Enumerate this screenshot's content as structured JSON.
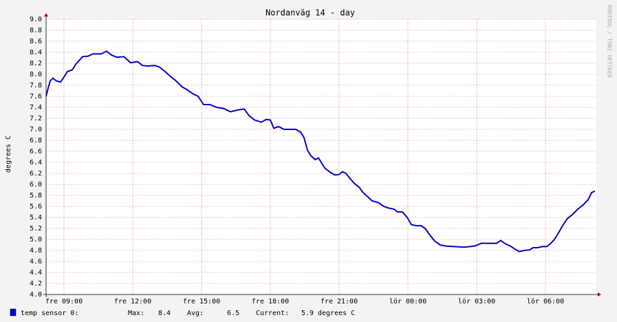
{
  "chart_data": {
    "type": "line",
    "title": "Nordanväg 14 - day",
    "y_label": "degrees C",
    "watermark": "RRDTOOL / TOBI OETIKER",
    "x": [
      8.22,
      8.31,
      8.4,
      8.52,
      8.67,
      8.85,
      9.0,
      9.15,
      9.36,
      9.51,
      9.66,
      9.81,
      10.05,
      10.26,
      10.62,
      10.86,
      11.07,
      11.31,
      11.61,
      11.91,
      12.21,
      12.42,
      12.66,
      12.96,
      13.17,
      13.41,
      13.65,
      13.89,
      14.16,
      14.37,
      14.61,
      14.85,
      15.09,
      15.36,
      15.66,
      15.96,
      16.26,
      16.56,
      16.86,
      17.07,
      17.31,
      17.61,
      17.82,
      18.0,
      18.15,
      18.36,
      18.6,
      18.81,
      19.11,
      19.32,
      19.47,
      19.62,
      19.77,
      19.95,
      20.1,
      20.22,
      20.37,
      20.61,
      20.82,
      21.0,
      21.15,
      21.3,
      21.45,
      21.66,
      21.87,
      22.05,
      22.26,
      22.44,
      22.71,
      22.95,
      23.16,
      23.4,
      23.55,
      23.76,
      23.97,
      24.15,
      24.36,
      24.57,
      24.75,
      24.96,
      25.17,
      25.41,
      25.65,
      26.01,
      26.46,
      26.91,
      27.21,
      27.57,
      27.87,
      28.05,
      28.26,
      28.47,
      28.65,
      28.86,
      29.07,
      29.31,
      29.46,
      29.67,
      29.85,
      30.06,
      30.21,
      30.39,
      30.57,
      30.75,
      30.96,
      31.17,
      31.41,
      31.65,
      31.86,
      32.01,
      32.16
    ],
    "series": [
      {
        "name": "temp sensor 0:",
        "color": "#0000cc",
        "values": [
          7.6,
          7.75,
          7.88,
          7.93,
          7.88,
          7.86,
          7.95,
          8.05,
          8.08,
          8.18,
          8.25,
          8.32,
          8.33,
          8.37,
          8.37,
          8.42,
          8.35,
          8.31,
          8.32,
          8.21,
          8.23,
          8.16,
          8.15,
          8.16,
          8.13,
          8.05,
          7.96,
          7.88,
          7.77,
          7.72,
          7.65,
          7.6,
          7.45,
          7.45,
          7.4,
          7.38,
          7.32,
          7.35,
          7.37,
          7.25,
          7.17,
          7.13,
          7.18,
          7.17,
          7.02,
          7.05,
          7.0,
          7.0,
          7.0,
          6.95,
          6.85,
          6.62,
          6.52,
          6.45,
          6.48,
          6.4,
          6.3,
          6.22,
          6.17,
          6.18,
          6.23,
          6.2,
          6.12,
          6.02,
          5.95,
          5.85,
          5.77,
          5.7,
          5.67,
          5.6,
          5.57,
          5.55,
          5.5,
          5.5,
          5.4,
          5.27,
          5.25,
          5.25,
          5.2,
          5.08,
          4.97,
          4.9,
          4.88,
          4.87,
          4.86,
          4.88,
          4.93,
          4.93,
          4.93,
          4.98,
          4.92,
          4.88,
          4.83,
          4.78,
          4.8,
          4.81,
          4.85,
          4.85,
          4.87,
          4.87,
          4.92,
          5.0,
          5.12,
          5.25,
          5.38,
          5.45,
          5.55,
          5.63,
          5.72,
          5.85,
          5.88
        ]
      }
    ],
    "legend_stats": [
      {
        "label": "Max:",
        "value": 8.4
      },
      {
        "label": "Avg:",
        "value": 6.5
      },
      {
        "label": "Current:",
        "value": 5.9,
        "unit": "degrees C"
      }
    ],
    "xlim": [
      8.22,
      32.22
    ],
    "xticks": [
      {
        "value": 9,
        "label": "fre 09:00"
      },
      {
        "value": 12,
        "label": "fre 12:00"
      },
      {
        "value": 15,
        "label": "fre 15:00"
      },
      {
        "value": 18,
        "label": "fre 18:00"
      },
      {
        "value": 21,
        "label": "fre 21:00"
      },
      {
        "value": 24,
        "label": "lör 00:00"
      },
      {
        "value": 27,
        "label": "lör 03:00"
      },
      {
        "value": 30,
        "label": "lör 06:00"
      }
    ],
    "ylim": [
      4.0,
      9.0
    ],
    "yticks": [
      {
        "value": 4,
        "label": "4.0"
      },
      4.2,
      4.4,
      4.6,
      4.8,
      {
        "value": 5,
        "label": "5.0"
      },
      5.2,
      5.4,
      5.6,
      5.8,
      {
        "value": 6,
        "label": "6.0"
      },
      6.2,
      6.4,
      6.6,
      6.8,
      {
        "value": 7,
        "label": "7.0"
      },
      7.2,
      7.4,
      7.6,
      7.8,
      {
        "value": 8,
        "label": "8.0"
      },
      8.2,
      8.4,
      8.6,
      8.8,
      {
        "value": 9,
        "label": "9.0"
      }
    ],
    "grid": true
  }
}
